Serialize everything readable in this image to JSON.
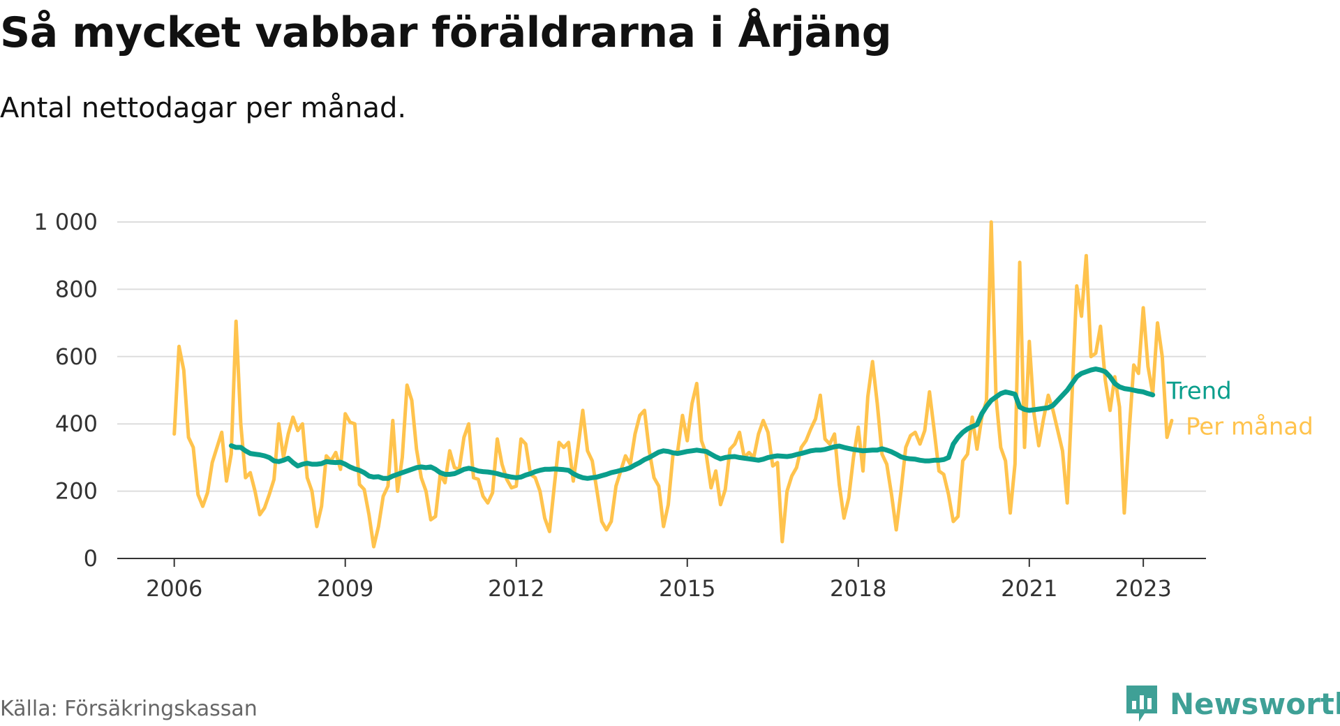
{
  "title": "Så mycket vabbar föräldrarna i Årjäng",
  "subtitle": "Antal nettodagar per månad.",
  "source": "Källa: Försäkringskassan",
  "brand": "Newsworthy",
  "colors": {
    "monthly": "#ffc34d",
    "trend": "#0a9e8c",
    "grid": "#dddddd",
    "axis": "#333333",
    "brand": "#3fa096"
  },
  "chart_data": {
    "type": "line",
    "title": "Så mycket vabbar föräldrarna i Årjäng",
    "subtitle": "Antal nettodagar per månad.",
    "xlabel": "",
    "ylabel": "",
    "xlim": [
      2005.0,
      2024.1
    ],
    "ylim": [
      0,
      1000
    ],
    "y_ticks": [
      0,
      200,
      400,
      600,
      800,
      1000
    ],
    "y_tick_labels": [
      "0",
      "200",
      "400",
      "600",
      "800",
      "1 000"
    ],
    "x_ticks": [
      2006,
      2009,
      2012,
      2015,
      2018,
      2021,
      2023
    ],
    "x_tick_labels": [
      "2006",
      "2009",
      "2012",
      "2015",
      "2018",
      "2021",
      "2023"
    ],
    "grid": true,
    "legend": "inline labels at line ends",
    "series": [
      {
        "name": "Per månad",
        "color": "#ffc34d",
        "x_start": 2006.0,
        "x_step": 0.08333,
        "values": [
          370,
          630,
          560,
          360,
          330,
          190,
          155,
          195,
          285,
          330,
          375,
          230,
          310,
          705,
          400,
          240,
          255,
          200,
          130,
          150,
          190,
          235,
          400,
          300,
          370,
          420,
          380,
          400,
          240,
          200,
          95,
          155,
          305,
          290,
          315,
          265,
          430,
          405,
          400,
          220,
          205,
          130,
          35,
          95,
          185,
          215,
          410,
          200,
          300,
          515,
          470,
          325,
          240,
          200,
          115,
          125,
          250,
          225,
          320,
          270,
          265,
          360,
          400,
          240,
          235,
          185,
          165,
          195,
          355,
          280,
          235,
          210,
          215,
          355,
          340,
          250,
          240,
          200,
          120,
          80,
          215,
          345,
          330,
          345,
          230,
          330,
          440,
          320,
          290,
          200,
          110,
          85,
          110,
          215,
          260,
          305,
          280,
          370,
          425,
          440,
          320,
          240,
          215,
          95,
          160,
          310,
          320,
          425,
          350,
          460,
          520,
          350,
          310,
          210,
          260,
          160,
          205,
          325,
          340,
          375,
          300,
          315,
          300,
          370,
          410,
          375,
          275,
          285,
          50,
          200,
          245,
          270,
          330,
          350,
          385,
          415,
          485,
          355,
          340,
          370,
          220,
          120,
          180,
          300,
          390,
          260,
          480,
          585,
          460,
          310,
          280,
          190,
          85,
          200,
          330,
          365,
          375,
          340,
          380,
          495,
          380,
          260,
          250,
          190,
          110,
          125,
          290,
          310,
          420,
          325,
          420,
          470,
          1000,
          480,
          330,
          290,
          135,
          280,
          880,
          330,
          645,
          430,
          335,
          415,
          485,
          440,
          380,
          320,
          165,
          480,
          810,
          720,
          900,
          600,
          610,
          690,
          530,
          440,
          540,
          450,
          135,
          370,
          575,
          550,
          745,
          570,
          490,
          700,
          600,
          360,
          410
        ]
      },
      {
        "name": "Trend",
        "color": "#0a9e8c",
        "x_start": 2007.0,
        "x_step": 0.08333,
        "values": [
          335,
          330,
          330,
          320,
          312,
          310,
          308,
          305,
          300,
          290,
          288,
          292,
          298,
          285,
          275,
          280,
          283,
          280,
          280,
          282,
          288,
          286,
          285,
          286,
          280,
          272,
          266,
          262,
          255,
          245,
          242,
          243,
          238,
          238,
          245,
          250,
          255,
          260,
          265,
          270,
          272,
          270,
          272,
          265,
          255,
          250,
          250,
          252,
          258,
          265,
          268,
          265,
          260,
          258,
          257,
          255,
          252,
          248,
          245,
          242,
          240,
          242,
          248,
          252,
          258,
          262,
          265,
          265,
          266,
          265,
          264,
          262,
          252,
          245,
          240,
          238,
          240,
          242,
          246,
          250,
          255,
          258,
          262,
          265,
          270,
          278,
          285,
          294,
          300,
          308,
          316,
          320,
          318,
          314,
          312,
          315,
          318,
          320,
          322,
          320,
          318,
          310,
          302,
          296,
          300,
          302,
          303,
          300,
          298,
          296,
          294,
          292,
          295,
          300,
          303,
          305,
          304,
          303,
          305,
          309,
          312,
          316,
          320,
          322,
          322,
          324,
          328,
          332,
          334,
          330,
          327,
          324,
          322,
          320,
          321,
          322,
          322,
          326,
          322,
          317,
          310,
          302,
          298,
          296,
          295,
          292,
          290,
          290,
          292,
          292,
          294,
          300,
          340,
          360,
          375,
          385,
          392,
          398,
          430,
          452,
          470,
          480,
          490,
          495,
          492,
          488,
          450,
          443,
          440,
          442,
          444,
          446,
          448,
          455,
          470,
          485,
          500,
          520,
          540,
          550,
          555,
          560,
          563,
          560,
          555,
          540,
          520,
          510,
          505,
          503,
          500,
          497,
          495,
          490,
          486
        ]
      }
    ]
  }
}
